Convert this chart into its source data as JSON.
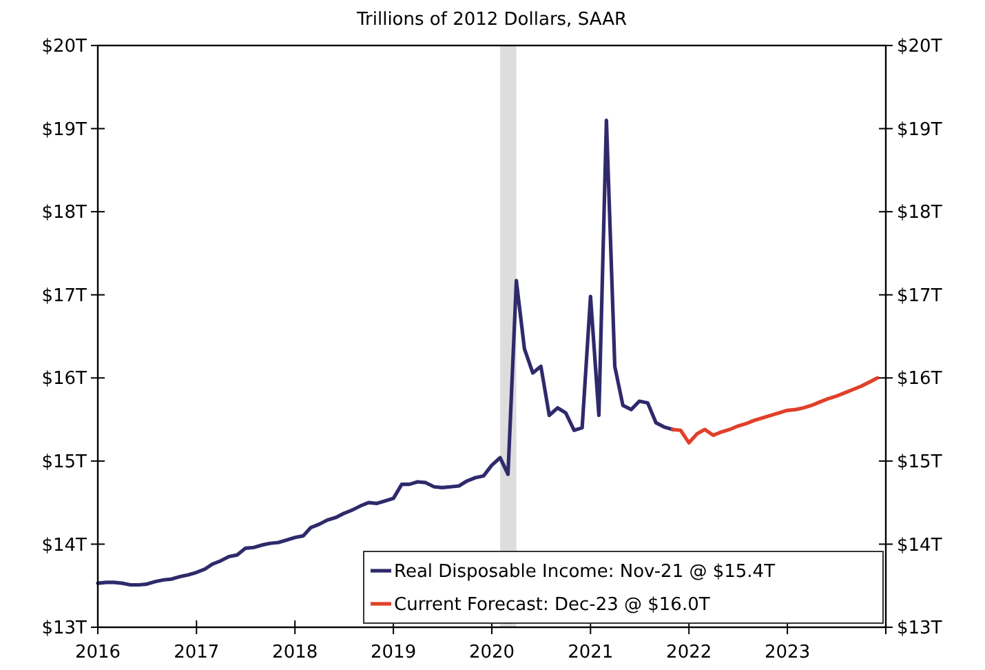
{
  "chart_data": {
    "type": "line",
    "subtitle": "Trillions of 2012 Dollars, SAAR",
    "xlim": [
      "2016-01",
      "2024-01"
    ],
    "xticks": [
      {
        "value": "2016-01",
        "label": "2016"
      },
      {
        "value": "2017-01",
        "label": "2017"
      },
      {
        "value": "2018-01",
        "label": "2018"
      },
      {
        "value": "2019-01",
        "label": "2019"
      },
      {
        "value": "2020-01",
        "label": "2020"
      },
      {
        "value": "2021-01",
        "label": "2021"
      },
      {
        "value": "2022-01",
        "label": "2022"
      },
      {
        "value": "2023-01",
        "label": "2023"
      },
      {
        "value": "2024-01",
        "label": null
      }
    ],
    "ylim": [
      13,
      20
    ],
    "yticks": [
      {
        "value": 13,
        "label": "$13T"
      },
      {
        "value": 14,
        "label": "$14T"
      },
      {
        "value": 15,
        "label": "$15T"
      },
      {
        "value": 16,
        "label": "$16T"
      },
      {
        "value": 17,
        "label": "$17T"
      },
      {
        "value": 18,
        "label": "$18T"
      },
      {
        "value": 19,
        "label": "$19T"
      },
      {
        "value": 20,
        "label": "$20T"
      }
    ],
    "y2lim": [
      13,
      20
    ],
    "y2ticks": [
      {
        "value": 13,
        "label": "$13T"
      },
      {
        "value": 14,
        "label": "$14T"
      },
      {
        "value": 15,
        "label": "$15T"
      },
      {
        "value": 16,
        "label": "$16T"
      },
      {
        "value": 17,
        "label": "$17T"
      },
      {
        "value": 18,
        "label": "$18T"
      },
      {
        "value": 19,
        "label": "$19T"
      },
      {
        "value": 20,
        "label": "$20T"
      }
    ],
    "grid": false,
    "legend": "bottom right",
    "marker": "none",
    "line_style": "solid",
    "bands": [
      {
        "axis": "x",
        "from": "2020-02",
        "to": "2020-04",
        "color": "#dddddd"
      }
    ],
    "series": [
      {
        "name": "Real Disposable Income: Nov-21 @ $15.4T",
        "color": "#2e2a6b",
        "x": [
          "2016-01",
          "2016-02",
          "2016-03",
          "2016-04",
          "2016-05",
          "2016-06",
          "2016-07",
          "2016-08",
          "2016-09",
          "2016-10",
          "2016-11",
          "2016-12",
          "2017-01",
          "2017-02",
          "2017-03",
          "2017-04",
          "2017-05",
          "2017-06",
          "2017-07",
          "2017-08",
          "2017-09",
          "2017-10",
          "2017-11",
          "2017-12",
          "2018-01",
          "2018-02",
          "2018-03",
          "2018-04",
          "2018-05",
          "2018-06",
          "2018-07",
          "2018-08",
          "2018-09",
          "2018-10",
          "2018-11",
          "2018-12",
          "2019-01",
          "2019-02",
          "2019-03",
          "2019-04",
          "2019-05",
          "2019-06",
          "2019-07",
          "2019-08",
          "2019-09",
          "2019-10",
          "2019-11",
          "2019-12",
          "2020-01",
          "2020-02",
          "2020-03",
          "2020-04",
          "2020-05",
          "2020-06",
          "2020-07",
          "2020-08",
          "2020-09",
          "2020-10",
          "2020-11",
          "2020-12",
          "2021-01",
          "2021-02",
          "2021-03",
          "2021-04",
          "2021-05",
          "2021-06",
          "2021-07",
          "2021-08",
          "2021-09",
          "2021-10",
          "2021-11"
        ],
        "values": [
          13.53,
          13.54,
          13.54,
          13.53,
          13.51,
          13.51,
          13.52,
          13.55,
          13.57,
          13.58,
          13.61,
          13.63,
          13.66,
          13.7,
          13.76,
          13.8,
          13.85,
          13.87,
          13.95,
          13.96,
          13.99,
          14.01,
          14.02,
          14.05,
          14.08,
          14.1,
          14.2,
          14.24,
          14.29,
          14.32,
          14.37,
          14.41,
          14.46,
          14.5,
          14.49,
          14.52,
          14.55,
          14.72,
          14.72,
          14.75,
          14.74,
          14.69,
          14.68,
          14.69,
          14.7,
          14.76,
          14.8,
          14.82,
          14.95,
          15.04,
          14.84,
          17.17,
          16.35,
          16.06,
          16.14,
          15.55,
          15.64,
          15.58,
          15.37,
          15.4,
          16.98,
          15.55,
          19.1,
          16.14,
          15.67,
          15.62,
          15.72,
          15.7,
          15.46,
          15.41,
          15.38
        ]
      },
      {
        "name": "Current Forecast: Dec-23 @ $16.0T",
        "color": "#e0402a",
        "x": [
          "2021-11",
          "2021-12",
          "2022-01",
          "2022-02",
          "2022-03",
          "2022-04",
          "2022-05",
          "2022-06",
          "2022-07",
          "2022-08",
          "2022-09",
          "2022-10",
          "2022-11",
          "2022-12",
          "2023-01",
          "2023-02",
          "2023-03",
          "2023-04",
          "2023-05",
          "2023-06",
          "2023-07",
          "2023-08",
          "2023-09",
          "2023-10",
          "2023-11",
          "2023-12"
        ],
        "values": [
          15.38,
          15.37,
          15.22,
          15.33,
          15.38,
          15.31,
          15.35,
          15.38,
          15.42,
          15.45,
          15.49,
          15.52,
          15.55,
          15.58,
          15.61,
          15.62,
          15.64,
          15.67,
          15.71,
          15.75,
          15.78,
          15.82,
          15.86,
          15.9,
          15.95,
          16.0
        ]
      }
    ]
  }
}
